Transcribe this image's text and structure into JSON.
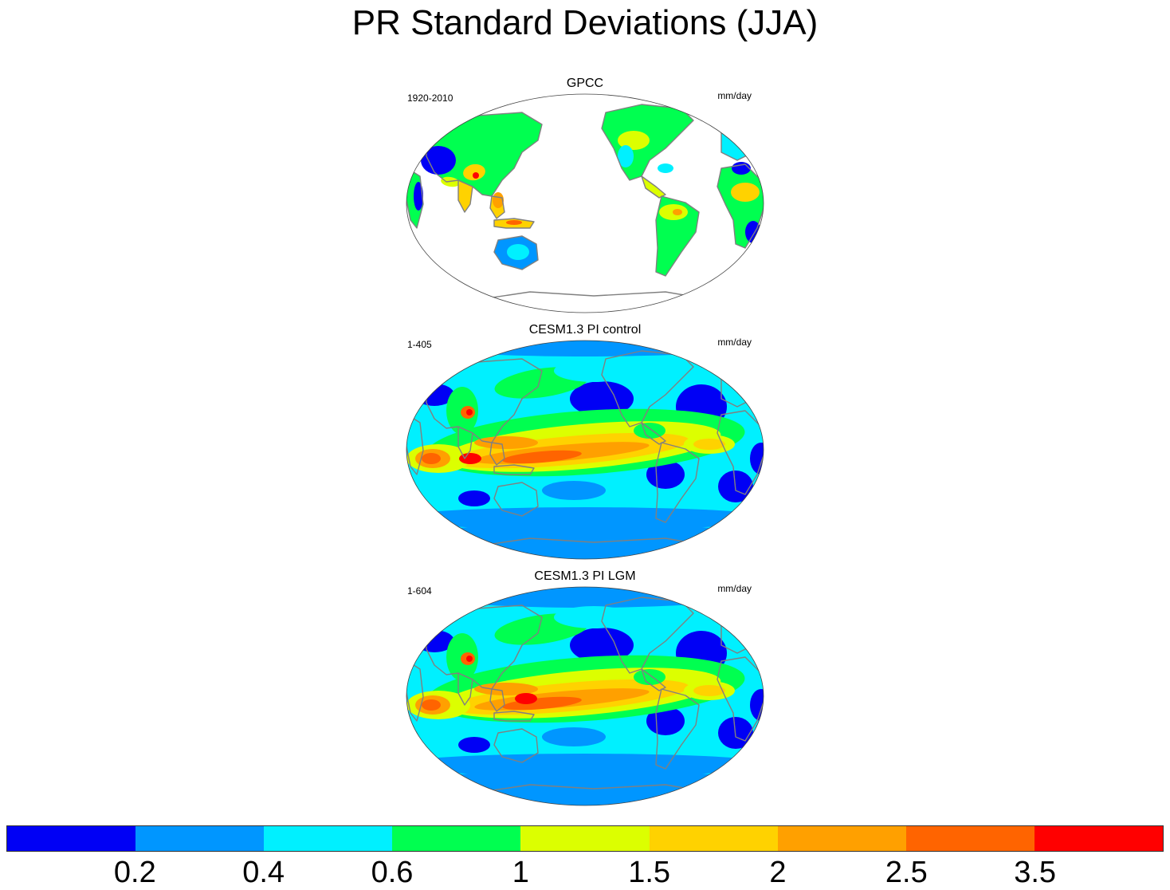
{
  "title": "PR Standard Deviations (JJA)",
  "panels": [
    {
      "title": "GPCC",
      "period": "1920-2010",
      "units": "mm/day",
      "ocean_data": false
    },
    {
      "title": "CESM1.3 PI control",
      "period": "1-405",
      "units": "mm/day",
      "ocean_data": true
    },
    {
      "title": "CESM1.3 PI LGM",
      "period": "1-604",
      "units": "mm/day",
      "ocean_data": true
    }
  ],
  "colorbar": {
    "colors": [
      "#0000f5",
      "#0096ff",
      "#00f0ff",
      "#00ff50",
      "#dcff00",
      "#ffd200",
      "#ffa000",
      "#ff6400",
      "#ff0000"
    ],
    "labels": [
      "0.2",
      "0.4",
      "0.6",
      "1",
      "1.5",
      "2",
      "2.5",
      "3.5"
    ]
  },
  "map": {
    "projection": "Robinson",
    "center": "Pacific",
    "coastline_color": "#808080"
  }
}
